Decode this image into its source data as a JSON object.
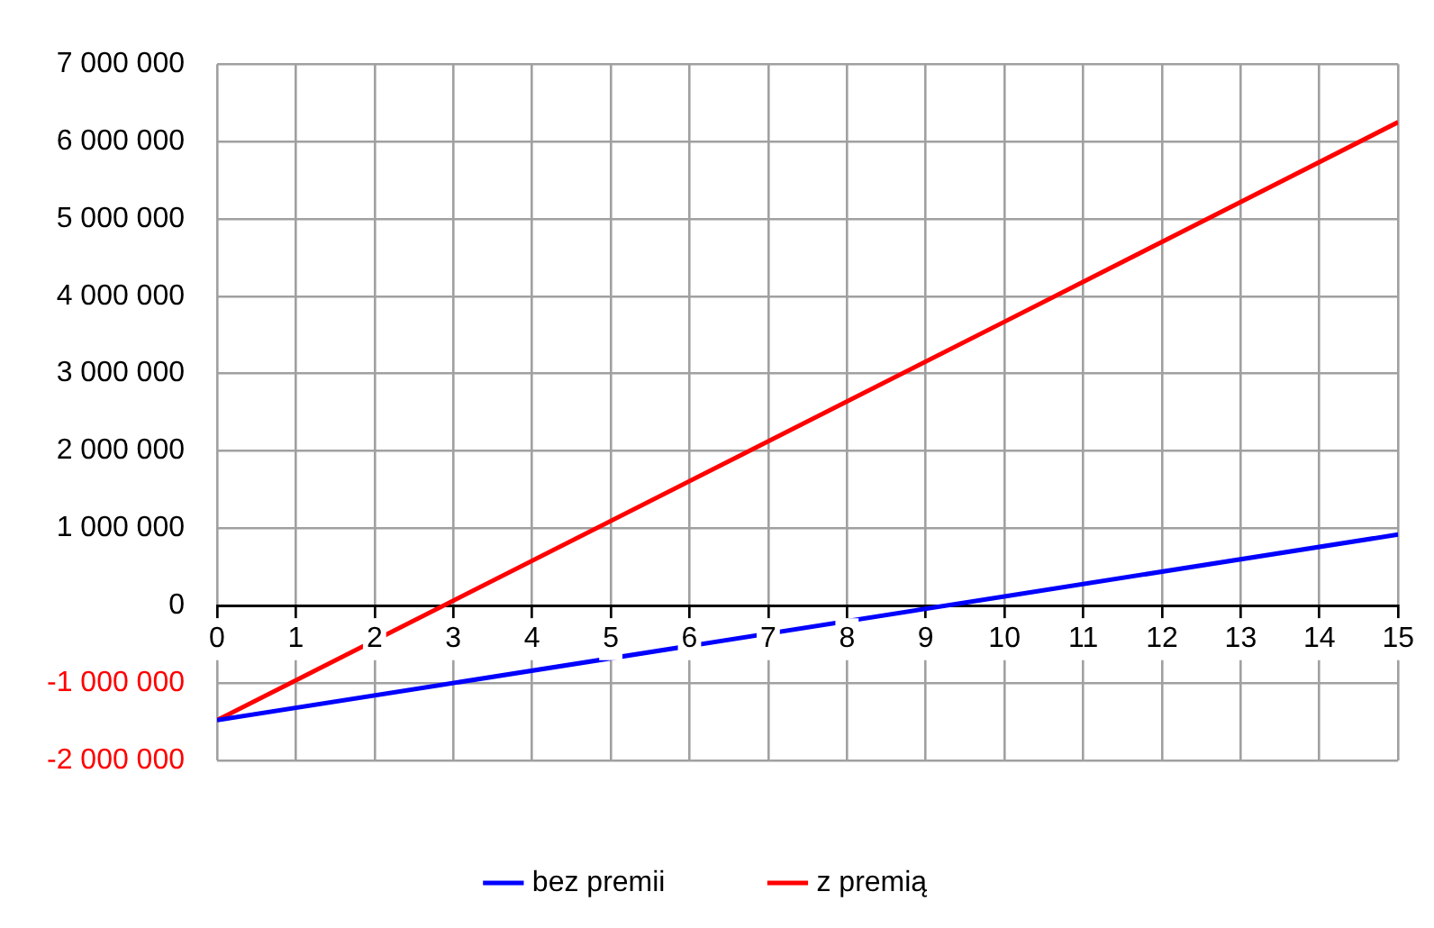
{
  "chart_data": {
    "type": "line",
    "series": [
      {
        "name": "bez premii",
        "color": "#0000ff",
        "x": [
          0,
          10,
          15
        ],
        "values": [
          -1480000,
          120000,
          920000
        ]
      },
      {
        "name": "z premią",
        "color": "#ff0000",
        "x": [
          0,
          10,
          15
        ],
        "values": [
          -1480000,
          3670000,
          6250000
        ]
      }
    ],
    "xlim": [
      0,
      15
    ],
    "xticks": [
      0,
      1,
      2,
      3,
      4,
      5,
      6,
      7,
      8,
      9,
      10,
      11,
      12,
      13,
      14,
      15
    ],
    "ylim": [
      -2000000,
      7000000
    ],
    "yticks": [
      -2000000,
      -1000000,
      0,
      1000000,
      2000000,
      3000000,
      4000000,
      5000000,
      6000000,
      7000000
    ],
    "grid": true,
    "legend": "bottom",
    "marker": "none",
    "line_style": "solid"
  }
}
